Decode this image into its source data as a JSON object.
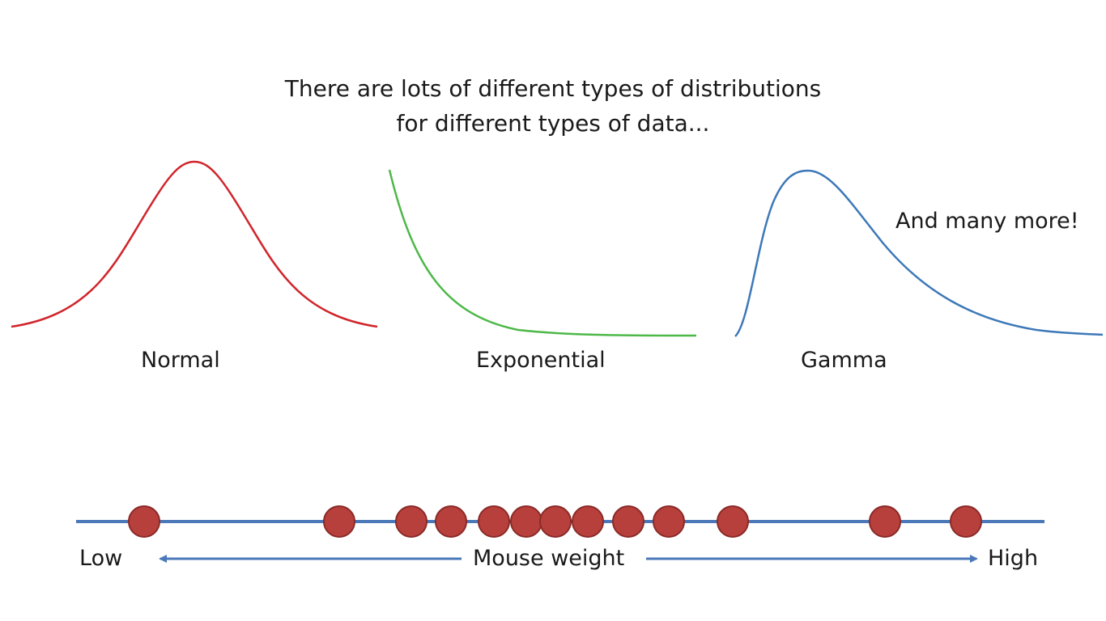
{
  "title": {
    "line1": "There are lots of different types of distributions",
    "line2": "for different types of data..."
  },
  "distributions": [
    {
      "name": "Normal",
      "color": "#d0252b"
    },
    {
      "name": "Exponential",
      "color": "#4db848"
    },
    {
      "name": "Gamma",
      "color": "#3d78b8"
    }
  ],
  "more_note": "And many more!",
  "number_line": {
    "axis_label": "Mouse weight",
    "low_label": "Low",
    "high_label": "High",
    "line_color": "#4a78b8",
    "point_color": "#b8403c",
    "point_count": 13
  }
}
